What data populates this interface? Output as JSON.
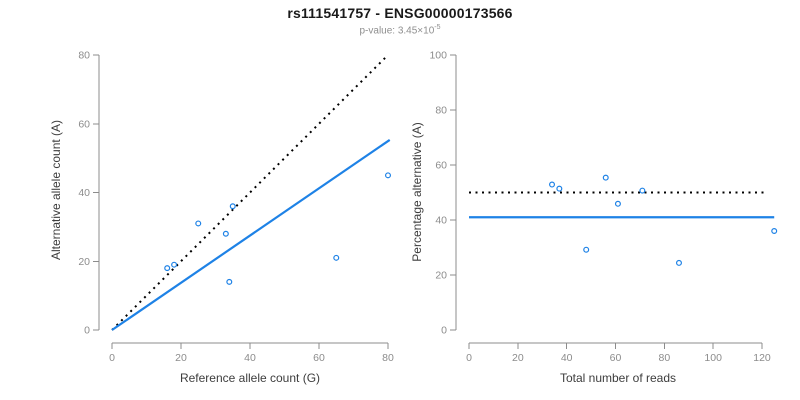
{
  "header": {
    "title": "rs111541757 - ENSG00000173566",
    "pvalue_label": "p-value: 3.45×10",
    "pvalue_exponent": "-5"
  },
  "colors": {
    "series_blue": "#1E82E6",
    "reference_black": "#000000",
    "axis_gray": "#8C8C8C",
    "tick_label_gray": "#8C8C8C",
    "axis_title_dark": "#3D3D3D",
    "background": "#FFFFFF"
  },
  "chart_data": [
    {
      "type": "scatter",
      "title": "",
      "xlabel": "Reference allele count (G)",
      "ylabel": "Alternative allele count (A)",
      "xlim": [
        0,
        80
      ],
      "ylim": [
        0,
        80
      ],
      "xticks": [
        0,
        20,
        40,
        60,
        80
      ],
      "yticks": [
        0,
        20,
        40,
        60,
        80
      ],
      "grid": false,
      "legend": "none",
      "marker": "open-circle",
      "points": [
        [
          16,
          18
        ],
        [
          18,
          19
        ],
        [
          25,
          31
        ],
        [
          33,
          28
        ],
        [
          34,
          14
        ],
        [
          35,
          36
        ],
        [
          65,
          21
        ],
        [
          80,
          45
        ]
      ],
      "lines": [
        {
          "name": "identity-reference",
          "style": "dotted",
          "color": "#000000",
          "x": [
            0,
            80
          ],
          "y": [
            0,
            80
          ]
        },
        {
          "name": "regression-fit",
          "style": "solid",
          "color": "#1E82E6",
          "x": [
            0,
            80.5
          ],
          "y": [
            0,
            55.3
          ]
        }
      ]
    },
    {
      "type": "scatter",
      "title": "",
      "xlabel": "Total number of reads",
      "ylabel": "Percentage alternative (A)",
      "xlim": [
        0,
        125
      ],
      "ylim": [
        0,
        100
      ],
      "xticks": [
        0,
        20,
        40,
        60,
        80,
        100,
        120
      ],
      "yticks": [
        0,
        20,
        40,
        60,
        80,
        100
      ],
      "grid": false,
      "legend": "none",
      "marker": "open-circle",
      "points": [
        [
          34,
          52.9
        ],
        [
          37,
          51.4
        ],
        [
          48,
          29.2
        ],
        [
          56,
          55.4
        ],
        [
          61,
          45.9
        ],
        [
          71,
          50.7
        ],
        [
          86,
          24.4
        ],
        [
          125,
          36
        ]
      ],
      "lines": [
        {
          "name": "fifty-percent-reference",
          "style": "dotted",
          "color": "#000000",
          "x": [
            0,
            122
          ],
          "y": [
            50,
            50
          ]
        },
        {
          "name": "mean-percentage-fit",
          "style": "solid",
          "color": "#1E82E6",
          "x": [
            0,
            125
          ],
          "y": [
            41,
            41
          ]
        }
      ]
    }
  ]
}
